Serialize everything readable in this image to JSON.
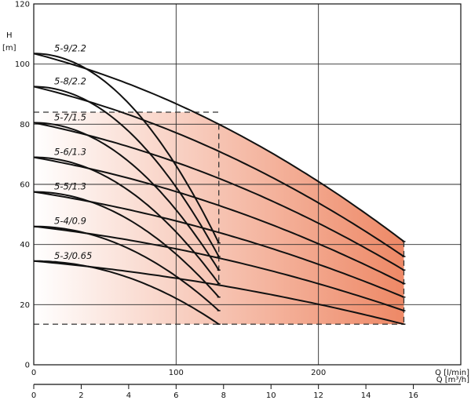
{
  "chart_data": {
    "type": "line",
    "title": "",
    "y_axis": {
      "label": "H",
      "unit": "[m]",
      "range": [
        0,
        120
      ],
      "ticks": [
        "0",
        "20",
        "40",
        "60",
        "80",
        "100",
        "120"
      ]
    },
    "x_axis": {
      "label": "Q [l/min]",
      "range": [
        0,
        300
      ],
      "ticks": [
        "0",
        "100",
        "200"
      ]
    },
    "x_axis2": {
      "label": "Q [m³/h]",
      "range": [
        0,
        18
      ],
      "ticks": [
        "0",
        "2",
        "4",
        "6",
        "8",
        "10",
        "12",
        "14",
        "16"
      ]
    },
    "grid": true,
    "recommended_range": {
      "q_l_min": [
        130,
        260
      ],
      "h_m": [
        13.5,
        84
      ],
      "shading": {
        "from": "#ffffff",
        "to": "#ee8a68"
      }
    },
    "series": [
      {
        "name": "5-9/2.2",
        "q_l_min": [
          0,
          130,
          260
        ],
        "h_m": [
          103.5,
          80,
          41
        ]
      },
      {
        "name": "5-8/2.2",
        "q_l_min": [
          0,
          130,
          260
        ],
        "h_m": [
          92.5,
          71,
          36
        ]
      },
      {
        "name": "5-7/1.5",
        "q_l_min": [
          0,
          130,
          260
        ],
        "h_m": [
          80.5,
          62,
          31.5
        ]
      },
      {
        "name": "5-6/1.3",
        "q_l_min": [
          0,
          130,
          260
        ],
        "h_m": [
          69,
          53,
          27
        ]
      },
      {
        "name": "5-5/1.3",
        "q_l_min": [
          0,
          130,
          260
        ],
        "h_m": [
          57.5,
          44,
          22.5
        ]
      },
      {
        "name": "5-4/0.9",
        "q_l_min": [
          0,
          130,
          260
        ],
        "h_m": [
          46,
          35.5,
          18
        ]
      },
      {
        "name": "5-3/0.65",
        "q_l_min": [
          0,
          130,
          260
        ],
        "h_m": [
          34.5,
          26.5,
          13.5
        ]
      }
    ],
    "legend": "inline-labels"
  }
}
